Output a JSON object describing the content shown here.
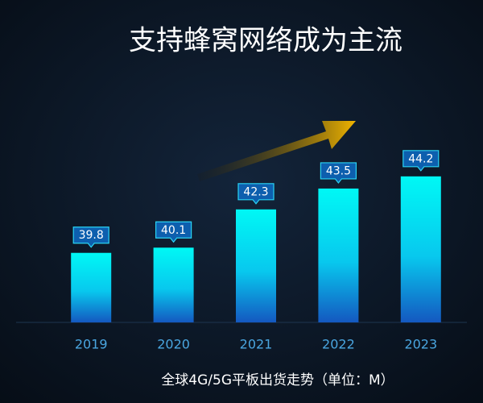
{
  "chart_data": {
    "type": "bar",
    "title": "支持蜂窝网络成为主流",
    "caption": "全球4G/5G平板出货走势（单位：M）",
    "categories": [
      "2019",
      "2020",
      "2021",
      "2022",
      "2023"
    ],
    "values": [
      39.8,
      40.1,
      42.3,
      43.5,
      44.2
    ],
    "ylim": [
      35.8,
      46
    ],
    "color": "#00f0f0"
  }
}
